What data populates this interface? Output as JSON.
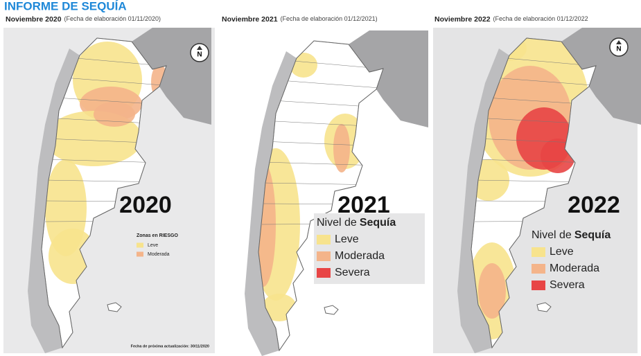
{
  "title": "INFORME DE SEQUÍA",
  "panels": [
    {
      "month": "Noviembre 2020",
      "note": "(Fecha de elaboración 01/11/2020)",
      "year": "2020",
      "compass": "N",
      "legend": {
        "title": "Zonas en RIESGO",
        "items": [
          {
            "label": "Leve",
            "color": "#f7e38d"
          },
          {
            "label": "Moderada",
            "color": "#f4b48a"
          }
        ]
      },
      "footnote": "Fecha de próxima actualización: 30/11/2020"
    },
    {
      "month": "Noviembre 2021",
      "note": "(Fecha de elaboración 01/12/2021)",
      "year": "2021",
      "legend": {
        "title": "Nivel de",
        "title_emphasis": "Sequía",
        "items": [
          {
            "label": "Leve",
            "color": "#f7e38d"
          },
          {
            "label": "Moderada",
            "color": "#f4b48a"
          },
          {
            "label": "Severa",
            "color": "#e84545"
          }
        ]
      }
    },
    {
      "month": "Noviembre 2022",
      "note": "(Fecha de elaboración 01/12/2022",
      "year": "2022",
      "compass": "N",
      "legend": {
        "title": "Nivel de",
        "title_emphasis": "Sequía",
        "items": [
          {
            "label": "Leve",
            "color": "#f7e38d"
          },
          {
            "label": "Moderada",
            "color": "#f4b48a"
          },
          {
            "label": "Severa",
            "color": "#e84545"
          }
        ]
      }
    }
  ]
}
